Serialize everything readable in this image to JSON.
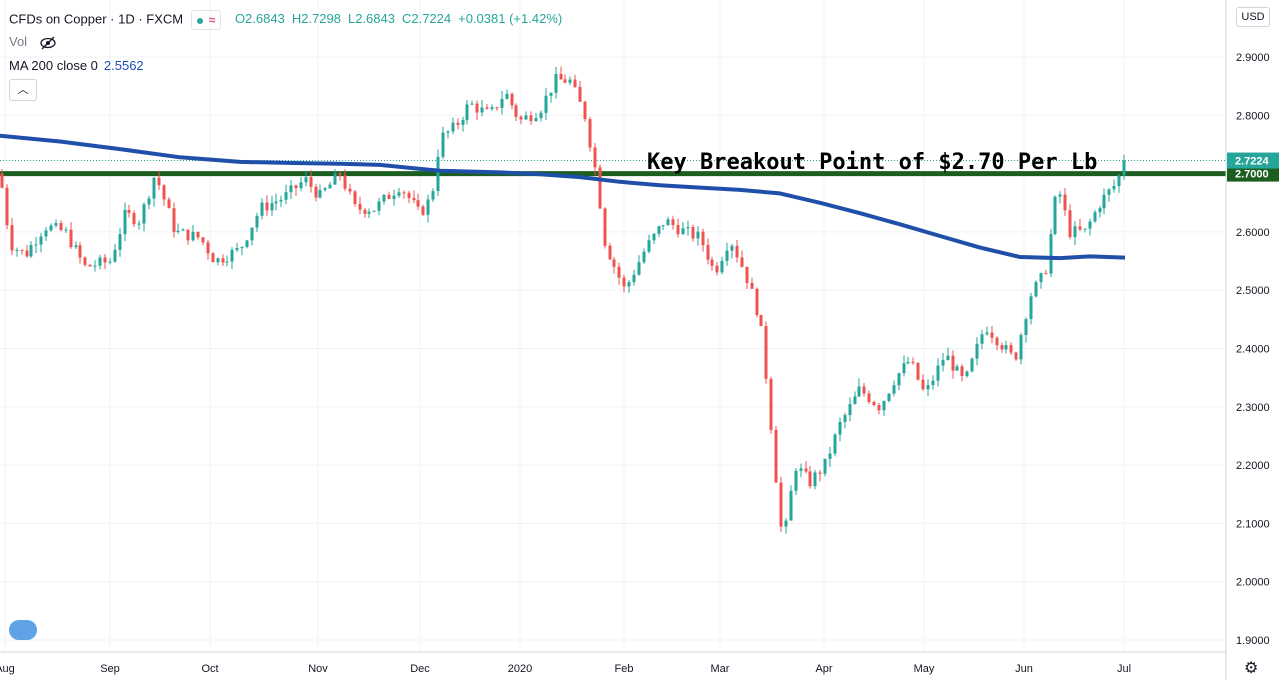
{
  "header": {
    "title": "CFDs on Copper · 1D · FXCM",
    "open": "O2.6843",
    "high": "H2.7298",
    "low": "L2.6843",
    "close": "C2.7224",
    "change": "+0.0381 (+1.42%)",
    "vol_label": "Vol",
    "ma_label": "MA 200 close 0",
    "ma_value": "2.5562"
  },
  "toolbar": {
    "currency": "USD"
  },
  "annotation": "Key Breakout Point of $2.70 Per Lb",
  "colors": {
    "up": "#26a69a",
    "down": "#ef5350",
    "ma": "#1f4fa8",
    "level": "#1b5e20",
    "last": "#26a69a"
  },
  "icons": [
    "eye-off-icon",
    "chevron-up-icon",
    "tradingview-logo-icon",
    "settings-gear-icon"
  ],
  "chart_data": {
    "type": "candlestick",
    "y_ticks": [
      "2.9000",
      "2.8000",
      "2.7000",
      "2.6000",
      "2.5000",
      "2.4000",
      "2.3000",
      "2.2000",
      "2.1000",
      "2.0000",
      "1.9000"
    ],
    "x_ticks": [
      "Aug",
      "Sep",
      "Oct",
      "Nov",
      "Dec",
      "2020",
      "Feb",
      "Mar",
      "Apr",
      "May",
      "Jun",
      "Jul"
    ],
    "ylim": [
      1.88,
      2.98
    ],
    "last_price": 2.7224,
    "last_price_label": "2.7224",
    "level_price": 2.7,
    "level_label": "2.7000",
    "ma_series": [
      [
        0,
        2.765
      ],
      [
        60,
        2.755
      ],
      [
        120,
        2.742
      ],
      [
        180,
        2.728
      ],
      [
        240,
        2.72
      ],
      [
        300,
        2.718
      ],
      [
        340,
        2.717
      ],
      [
        380,
        2.715
      ],
      [
        420,
        2.708
      ],
      [
        440,
        2.705
      ],
      [
        500,
        2.702
      ],
      [
        540,
        2.699
      ],
      [
        580,
        2.694
      ],
      [
        620,
        2.686
      ],
      [
        660,
        2.68
      ],
      [
        700,
        2.676
      ],
      [
        740,
        2.672
      ],
      [
        780,
        2.666
      ],
      [
        820,
        2.65
      ],
      [
        860,
        2.632
      ],
      [
        900,
        2.613
      ],
      [
        940,
        2.593
      ],
      [
        980,
        2.573
      ],
      [
        1020,
        2.557
      ],
      [
        1060,
        2.555
      ],
      [
        1090,
        2.558
      ],
      [
        1125,
        2.556
      ]
    ],
    "anchors": [
      [
        0,
        2.7
      ],
      [
        10,
        2.58
      ],
      [
        25,
        2.56
      ],
      [
        45,
        2.61
      ],
      [
        65,
        2.6
      ],
      [
        85,
        2.54
      ],
      [
        110,
        2.55
      ],
      [
        125,
        2.63
      ],
      [
        140,
        2.62
      ],
      [
        155,
        2.7
      ],
      [
        175,
        2.6
      ],
      [
        200,
        2.59
      ],
      [
        215,
        2.55
      ],
      [
        240,
        2.57
      ],
      [
        260,
        2.64
      ],
      [
        285,
        2.66
      ],
      [
        305,
        2.69
      ],
      [
        320,
        2.66
      ],
      [
        340,
        2.7
      ],
      [
        355,
        2.64
      ],
      [
        375,
        2.64
      ],
      [
        400,
        2.68
      ],
      [
        420,
        2.63
      ],
      [
        432,
        2.66
      ],
      [
        440,
        2.76
      ],
      [
        455,
        2.78
      ],
      [
        470,
        2.82
      ],
      [
        490,
        2.8
      ],
      [
        505,
        2.84
      ],
      [
        520,
        2.79
      ],
      [
        540,
        2.81
      ],
      [
        555,
        2.86
      ],
      [
        570,
        2.86
      ],
      [
        585,
        2.8
      ],
      [
        596,
        2.7
      ],
      [
        605,
        2.58
      ],
      [
        625,
        2.5
      ],
      [
        645,
        2.57
      ],
      [
        665,
        2.62
      ],
      [
        685,
        2.6
      ],
      [
        700,
        2.59
      ],
      [
        715,
        2.53
      ],
      [
        730,
        2.59
      ],
      [
        745,
        2.53
      ],
      [
        760,
        2.45
      ],
      [
        768,
        2.33
      ],
      [
        775,
        2.2
      ],
      [
        783,
        2.06
      ],
      [
        795,
        2.2
      ],
      [
        810,
        2.17
      ],
      [
        825,
        2.2
      ],
      [
        840,
        2.27
      ],
      [
        860,
        2.33
      ],
      [
        880,
        2.3
      ],
      [
        895,
        2.35
      ],
      [
        910,
        2.38
      ],
      [
        925,
        2.32
      ],
      [
        945,
        2.39
      ],
      [
        965,
        2.34
      ],
      [
        985,
        2.44
      ],
      [
        1000,
        2.41
      ],
      [
        1015,
        2.38
      ],
      [
        1030,
        2.49
      ],
      [
        1045,
        2.53
      ],
      [
        1058,
        2.68
      ],
      [
        1070,
        2.6
      ],
      [
        1085,
        2.6
      ],
      [
        1100,
        2.65
      ],
      [
        1115,
        2.68
      ],
      [
        1126,
        2.72
      ]
    ]
  }
}
